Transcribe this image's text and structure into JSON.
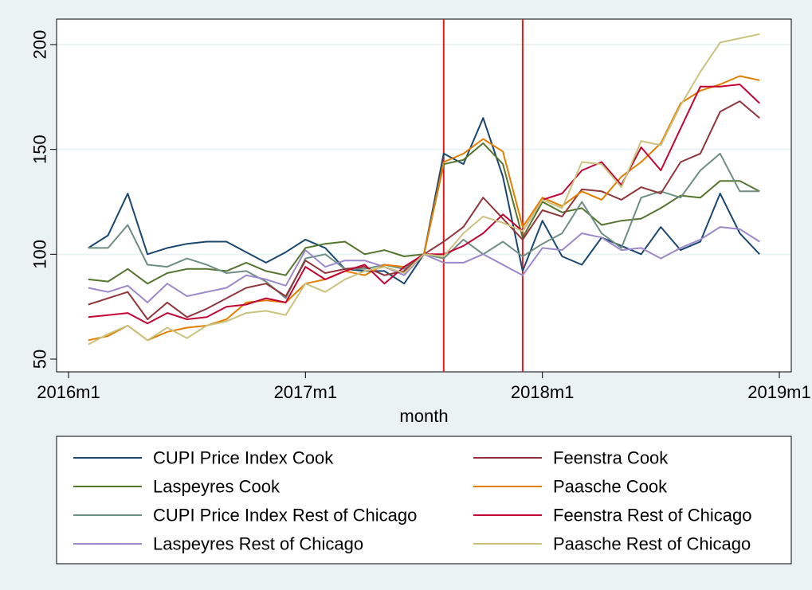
{
  "chart_data": {
    "type": "line",
    "title": "",
    "xlabel": "month",
    "ylabel": "",
    "xlim": [
      "2016m1",
      "2019m1"
    ],
    "ylim": [
      50,
      200
    ],
    "y_ticks": [
      50,
      100,
      150,
      200
    ],
    "x_ticks": [
      "2016m1",
      "2017m1",
      "2018m1",
      "2019m1"
    ],
    "grid": "horizontal",
    "legend_position": "bottom",
    "reference_lines": [
      {
        "x": "2017m8",
        "color": "#e41a1c"
      },
      {
        "x": "2017m12",
        "color": "#e41a1c"
      }
    ],
    "x": [
      "2016m2",
      "2016m3",
      "2016m4",
      "2016m5",
      "2016m6",
      "2016m7",
      "2016m8",
      "2016m9",
      "2016m10",
      "2016m11",
      "2016m12",
      "2017m1",
      "2017m2",
      "2017m3",
      "2017m4",
      "2017m5",
      "2017m6",
      "2017m7",
      "2017m8",
      "2017m9",
      "2017m10",
      "2017m11",
      "2017m12",
      "2018m1",
      "2018m2",
      "2018m3",
      "2018m4",
      "2018m5",
      "2018m6",
      "2018m7",
      "2018m8",
      "2018m9",
      "2018m10",
      "2018m11",
      "2018m12"
    ],
    "series": [
      {
        "name": "CUPI Price Index Cook",
        "color": "#1a476f",
        "values": [
          103,
          109,
          129,
          100,
          103,
          105,
          106,
          106,
          101,
          96,
          101,
          107,
          103,
          93,
          92,
          92,
          86,
          100,
          148,
          143,
          165,
          137,
          92,
          116,
          99,
          95,
          108,
          104,
          100,
          113,
          102,
          106,
          129,
          110,
          100
        ]
      },
      {
        "name": "Laspeyres Cook",
        "color": "#55752f",
        "values": [
          88,
          87,
          93,
          86,
          91,
          93,
          93,
          92,
          96,
          92,
          90,
          103,
          105,
          106,
          100,
          102,
          99,
          100,
          143,
          145,
          153,
          143,
          108,
          125,
          120,
          122,
          114,
          116,
          117,
          122,
          128,
          127,
          135,
          135,
          130
        ]
      },
      {
        "name": "CUPI Price Index Rest of Chicago",
        "color": "#6e8e84",
        "values": [
          103,
          103,
          114,
          95,
          94,
          98,
          95,
          91,
          92,
          87,
          79,
          98,
          100,
          93,
          93,
          95,
          93,
          100,
          98,
          107,
          100,
          106,
          99,
          105,
          110,
          125,
          110,
          103,
          127,
          130,
          127,
          140,
          148,
          130,
          130
        ]
      },
      {
        "name": "Laspeyres Rest of Chicago",
        "color": "#9b88ca",
        "values": [
          84,
          82,
          85,
          77,
          86,
          80,
          82,
          84,
          90,
          88,
          85,
          102,
          94,
          97,
          97,
          94,
          90,
          100,
          96,
          96,
          100,
          95,
          90,
          103,
          102,
          110,
          108,
          102,
          103,
          98,
          103,
          107,
          113,
          112,
          106
        ]
      },
      {
        "name": "Feenstra Cook",
        "color": "#90353b",
        "values": [
          76,
          79,
          82,
          69,
          77,
          70,
          74,
          79,
          84,
          86,
          80,
          97,
          91,
          93,
          94,
          90,
          92,
          100,
          106,
          113,
          127,
          117,
          107,
          121,
          118,
          131,
          130,
          126,
          132,
          129,
          144,
          148,
          168,
          173,
          165
        ]
      },
      {
        "name": "Paasche Cook",
        "color": "#e37e00",
        "values": [
          59,
          61,
          66,
          59,
          63,
          65,
          66,
          69,
          77,
          78,
          77,
          86,
          88,
          92,
          90,
          95,
          94,
          100,
          144,
          148,
          155,
          149,
          113,
          127,
          123,
          130,
          126,
          137,
          144,
          153,
          172,
          178,
          181,
          185,
          183
        ]
      },
      {
        "name": "Feenstra Rest of Chicago",
        "color": "#c10534",
        "values": [
          70,
          71,
          72,
          67,
          72,
          69,
          70,
          75,
          76,
          79,
          77,
          94,
          88,
          92,
          95,
          86,
          94,
          100,
          100,
          104,
          110,
          119,
          111,
          126,
          129,
          140,
          144,
          133,
          151,
          140,
          160,
          180,
          180,
          181,
          172
        ]
      },
      {
        "name": "Paasche Rest of Chicago",
        "color": "#cac27e",
        "values": [
          57,
          62,
          66,
          59,
          65,
          60,
          66,
          68,
          72,
          73,
          71,
          86,
          82,
          88,
          92,
          94,
          91,
          100,
          99,
          110,
          118,
          115,
          111,
          126,
          122,
          144,
          143,
          132,
          154,
          152,
          171,
          187,
          201,
          203,
          205
        ]
      }
    ],
    "legend": {
      "columns": [
        [
          "CUPI Price Index Cook",
          "Laspeyres Cook",
          "CUPI Price Index Rest of Chicago",
          "Laspeyres Rest of Chicago"
        ],
        [
          "Feenstra Cook",
          "Paasche Cook",
          "Feenstra Rest of Chicago",
          "Paasche Rest of Chicago"
        ]
      ]
    }
  }
}
